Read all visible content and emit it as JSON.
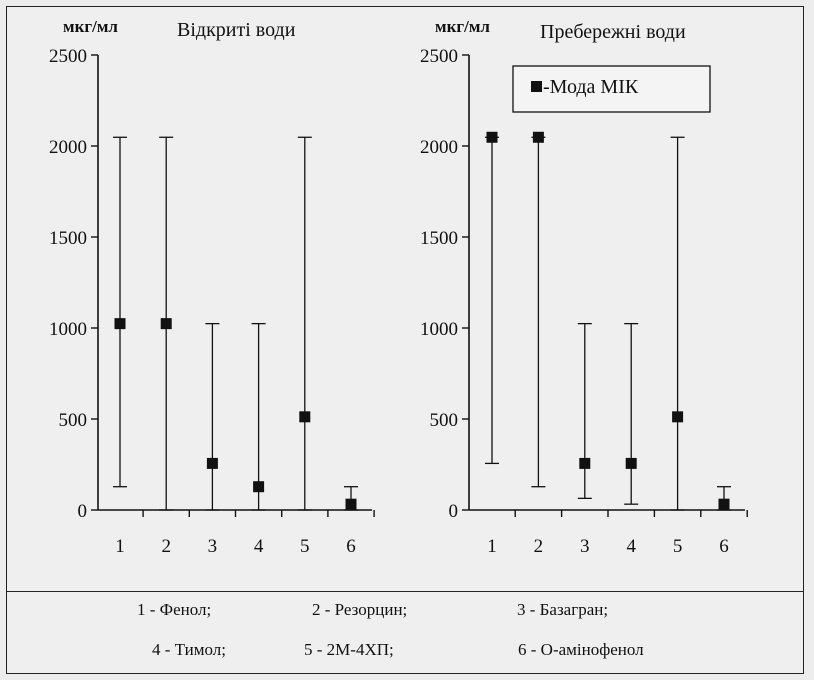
{
  "chart_data": [
    {
      "type": "scatter",
      "title": "Відкриті води",
      "ylabel": "мкг/мл",
      "categories": [
        "1",
        "2",
        "3",
        "4",
        "5",
        "6"
      ],
      "ylim": [
        0,
        2500
      ],
      "yticks": [
        0,
        500,
        1000,
        1500,
        2000,
        2500
      ],
      "grid": false,
      "series": [
        {
          "name": "Мода МІК",
          "values": [
            1024,
            1024,
            256,
            128,
            512,
            32
          ],
          "low": [
            128,
            0,
            0,
            0,
            0,
            0
          ],
          "high": [
            2048,
            2048,
            1024,
            1024,
            2048,
            128
          ]
        }
      ]
    },
    {
      "type": "scatter",
      "title": "Пребережні води",
      "ylabel": "мкг/мл",
      "categories": [
        "1",
        "2",
        "3",
        "4",
        "5",
        "6"
      ],
      "ylim": [
        0,
        2500
      ],
      "yticks": [
        0,
        500,
        1000,
        1500,
        2000,
        2500
      ],
      "grid": false,
      "legend": "top-right",
      "series": [
        {
          "name": "Мода МІК",
          "values": [
            2048,
            2048,
            256,
            256,
            512,
            32
          ],
          "low": [
            256,
            128,
            64,
            32,
            0,
            0
          ],
          "high": [
            2048,
            2048,
            1024,
            1024,
            2048,
            128
          ]
        }
      ]
    }
  ],
  "legend_label": "-Мода МІК",
  "footer": {
    "items": [
      "1 - Фенол;",
      "2 - Резорцин;",
      "3 - Базагран;",
      "4 - Тимол;",
      "5 - 2М-4ХП;",
      "6 - О-амінофенол"
    ]
  }
}
